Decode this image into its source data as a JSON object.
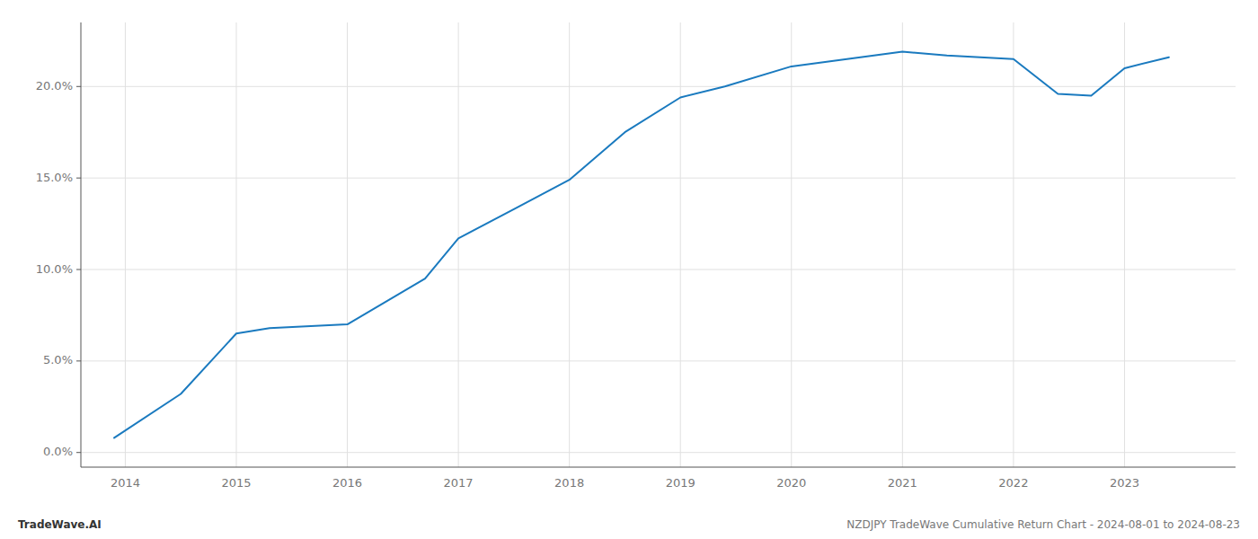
{
  "chart_data": {
    "type": "line",
    "x": [
      2013.9,
      2014.5,
      2015.0,
      2015.3,
      2016.0,
      2016.7,
      2017.0,
      2017.5,
      2018.0,
      2018.5,
      2019.0,
      2019.4,
      2020.0,
      2020.5,
      2021.0,
      2021.4,
      2022.0,
      2022.4,
      2022.7,
      2023.0,
      2023.4
    ],
    "values": [
      0.8,
      3.2,
      6.5,
      6.8,
      7.0,
      9.5,
      11.7,
      13.3,
      14.9,
      17.5,
      19.4,
      20.0,
      21.1,
      21.5,
      21.9,
      21.7,
      21.5,
      19.6,
      19.5,
      21.0,
      21.6
    ],
    "color": "#1a7abf",
    "xlim": [
      2013.6,
      2024.0
    ],
    "ylim": [
      -0.8,
      23.5
    ],
    "xticks": [
      2014,
      2015,
      2016,
      2017,
      2018,
      2019,
      2020,
      2021,
      2022,
      2023
    ],
    "yticks": [
      {
        "value": 0.0,
        "label": "0.0%"
      },
      {
        "value": 5.0,
        "label": "5.0%"
      },
      {
        "value": 10.0,
        "label": "10.0%"
      },
      {
        "value": 15.0,
        "label": "15.0%"
      },
      {
        "value": 20.0,
        "label": "20.0%"
      }
    ],
    "grid": true,
    "annotations": [
      "TradeWave.AI",
      "NZDJPY TradeWave Cumulative Return Chart - 2024-08-01 to 2024-08-23"
    ]
  }
}
